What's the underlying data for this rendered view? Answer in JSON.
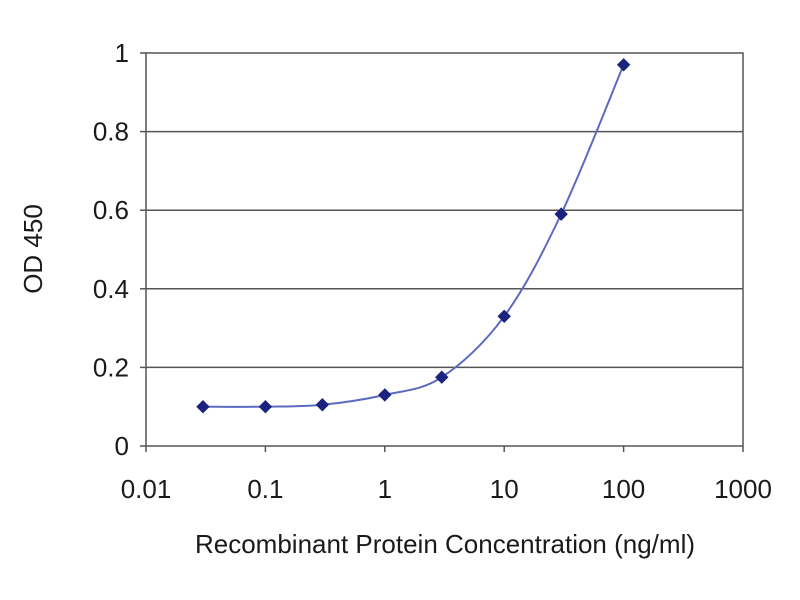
{
  "chart_data": {
    "type": "scatter",
    "title": "",
    "xlabel": "Recombinant Protein Concentration (ng/ml)",
    "ylabel": "OD 450",
    "xscale": "log",
    "xlim": [
      0.01,
      1000
    ],
    "ylim": [
      0,
      1
    ],
    "x_ticks": [
      0.01,
      0.1,
      1,
      10,
      100,
      1000
    ],
    "x_tick_labels": [
      "0.01",
      "0.1",
      "1",
      "10",
      "100",
      "1000"
    ],
    "y_ticks": [
      0,
      0.2,
      0.4,
      0.6,
      0.8,
      1
    ],
    "y_tick_labels": [
      "0",
      "0.2",
      "0.4",
      "0.6",
      "0.8",
      "1"
    ],
    "grid": "horizontal",
    "legend": "none",
    "series": [
      {
        "x": [
          0.03,
          0.1,
          0.3,
          1,
          3,
          10,
          30,
          100
        ],
        "y": [
          0.1,
          0.1,
          0.105,
          0.13,
          0.175,
          0.33,
          0.59,
          0.97
        ],
        "marker": "diamond",
        "line": "smooth",
        "color": "#1a237e",
        "line_color": "#5c6bc0"
      }
    ],
    "colors": {
      "background": "#ffffff",
      "gridline": "#555555",
      "axis": "#555555"
    }
  }
}
